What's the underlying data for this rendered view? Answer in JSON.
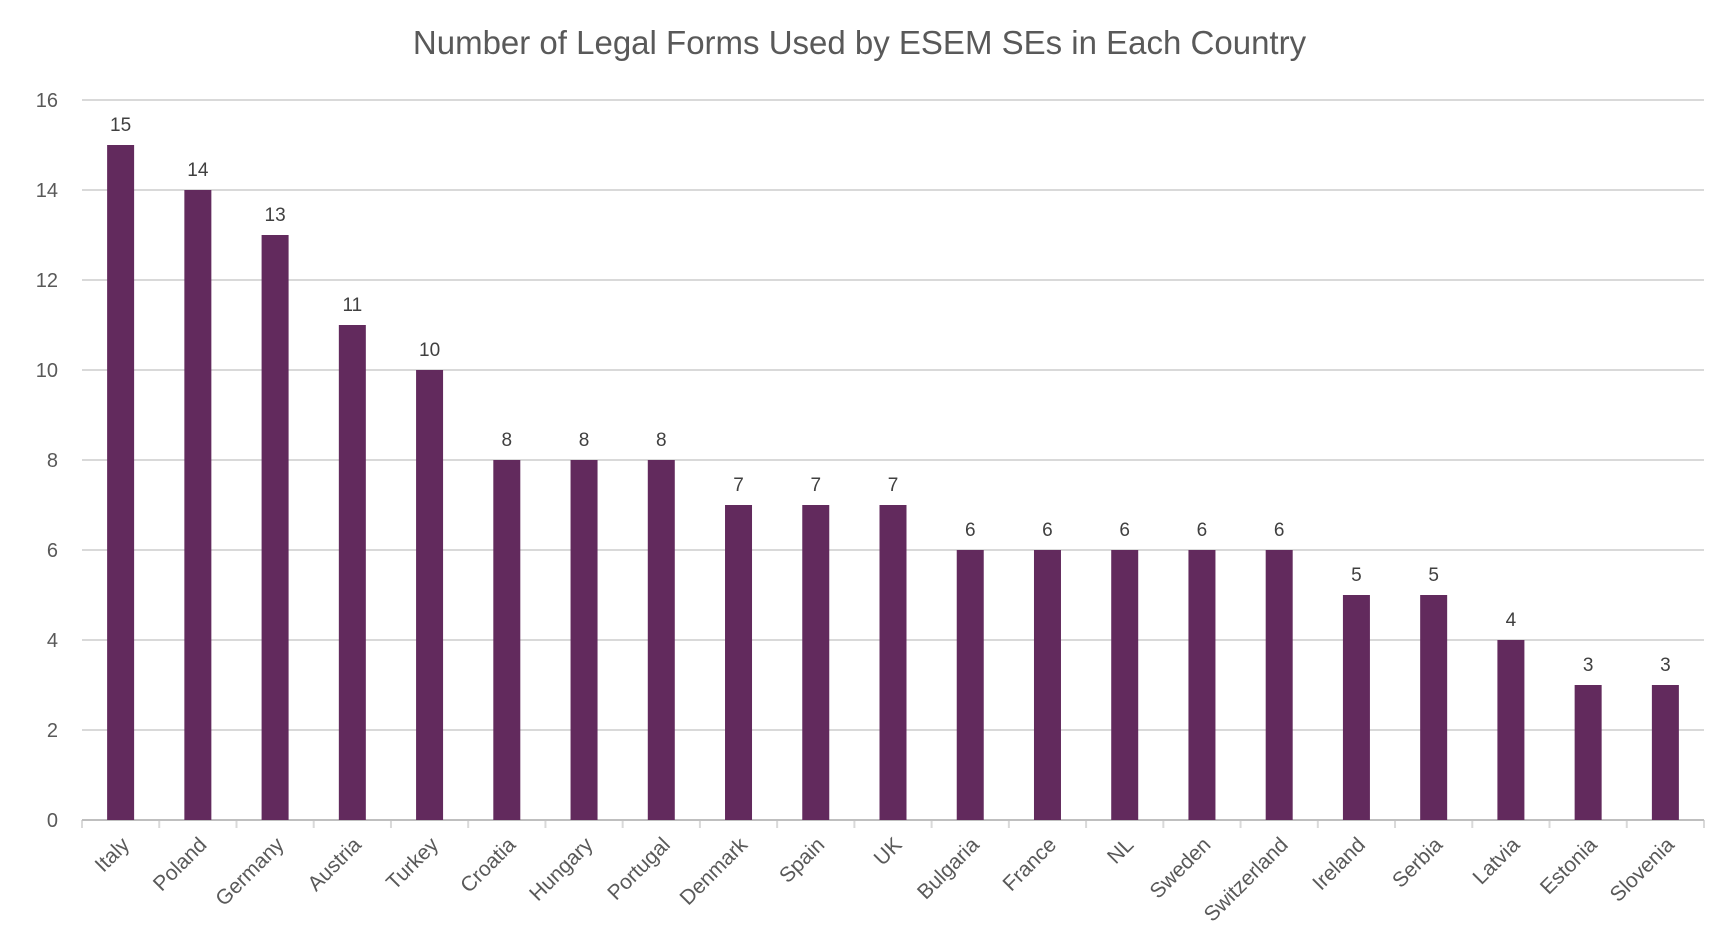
{
  "chart_data": {
    "type": "bar",
    "title": "Number of Legal Forms Used by ESEM SEs in Each Country",
    "xlabel": "",
    "ylabel": "",
    "categories": [
      "Italy",
      "Poland",
      "Germany",
      "Austria",
      "Turkey",
      "Croatia",
      "Hungary",
      "Portugal",
      "Denmark",
      "Spain",
      "UK",
      "Bulgaria",
      "France",
      "NL",
      "Sweden",
      "Switzerland",
      "Ireland",
      "Serbia",
      "Latvia",
      "Estonia",
      "Slovenia"
    ],
    "values": [
      15,
      14,
      13,
      11,
      10,
      8,
      8,
      8,
      7,
      7,
      7,
      6,
      6,
      6,
      6,
      6,
      5,
      5,
      4,
      3,
      3
    ],
    "ylim": [
      0,
      16
    ],
    "yticks": [
      0,
      2,
      4,
      6,
      8,
      10,
      12,
      14,
      16
    ],
    "grid": true,
    "data_labels": true,
    "legend": "none",
    "bar_color": "#622a5d",
    "grid_color": "#d9d9d9",
    "text_color": "#595959"
  }
}
